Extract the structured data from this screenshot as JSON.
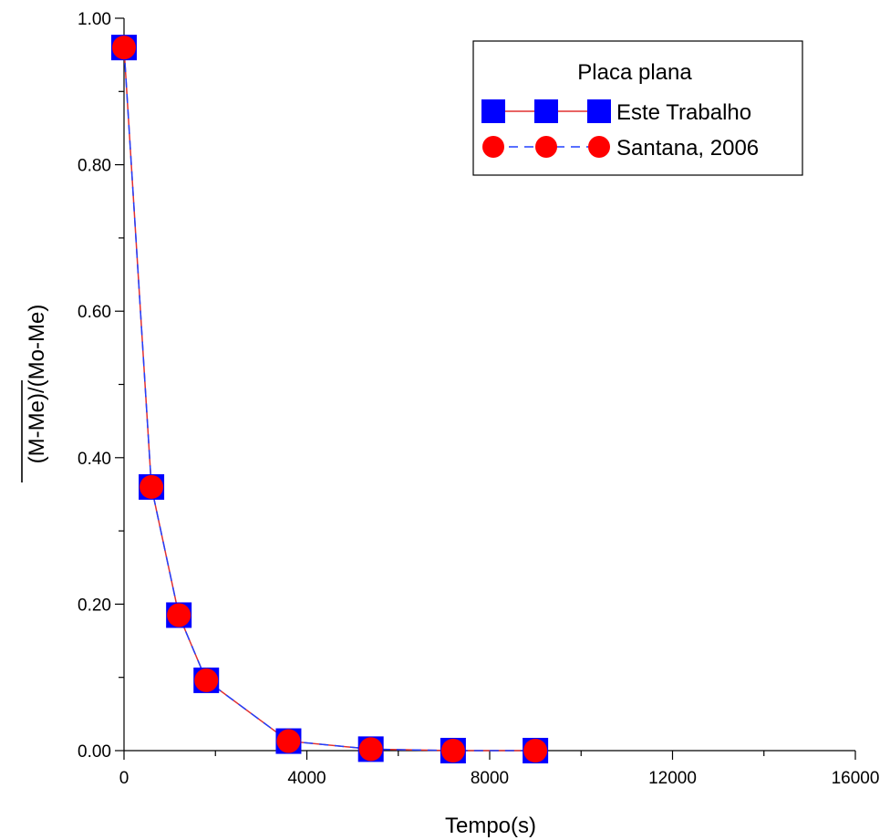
{
  "chart_data": {
    "type": "line",
    "xlabel": "Tempo(s)",
    "ylabel": "(M-Me)/(Mo-Me)",
    "xlim": [
      0,
      16000
    ],
    "ylim": [
      0,
      1.0
    ],
    "xticks": [
      0,
      4000,
      8000,
      12000,
      16000
    ],
    "xtick_labels": [
      "0",
      "4000",
      "8000",
      "12000",
      "16000"
    ],
    "yticks": [
      0,
      0.2,
      0.4,
      0.6,
      0.8,
      1.0
    ],
    "ytick_labels": [
      "0.00",
      "0.20",
      "0.40",
      "0.60",
      "0.80",
      "1.00"
    ],
    "grid": false,
    "legend": {
      "title": "Placa plana",
      "position": "top-right"
    },
    "x": [
      0,
      600,
      1200,
      1800,
      3600,
      5400,
      7200,
      9000
    ],
    "series": [
      {
        "name": "Este Trabalho",
        "marker": "square",
        "marker_color": "#0000ff",
        "line_color": "#e03030",
        "line_style": "solid",
        "values": [
          0.96,
          0.36,
          0.185,
          0.096,
          0.013,
          0.002,
          0.0,
          0.0
        ]
      },
      {
        "name": "Santana, 2006",
        "marker": "circle",
        "marker_color": "#ff0000",
        "line_color": "#2040ff",
        "line_style": "dashed",
        "values": [
          0.96,
          0.36,
          0.185,
          0.096,
          0.013,
          0.002,
          0.0,
          0.0
        ]
      }
    ]
  }
}
